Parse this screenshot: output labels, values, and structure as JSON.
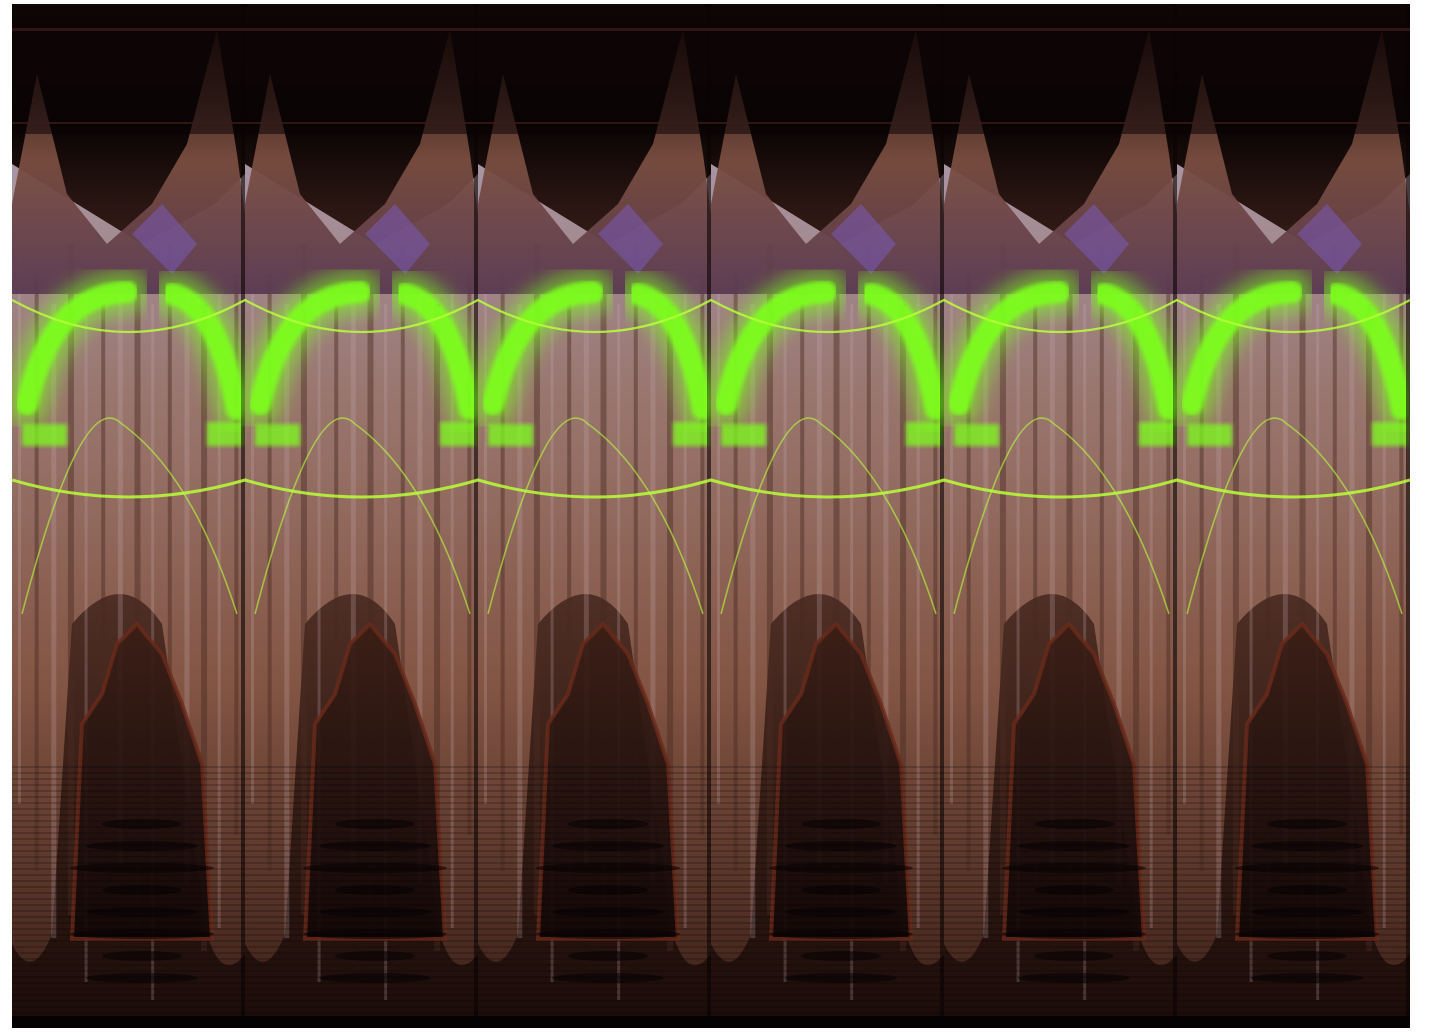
{
  "image": {
    "kind": "abstract-glitch-artwork",
    "palette": {
      "background": "#0d0606",
      "top_band": "#1a0c0a",
      "copper": "#8a5a4a",
      "mauve": "#a58fa0",
      "violet": "#7a5ab8",
      "shadow": "#2a1410",
      "neon_green": "#7dff1e",
      "lime_line": "#b8ff3a"
    },
    "repeat_count": 6
  }
}
